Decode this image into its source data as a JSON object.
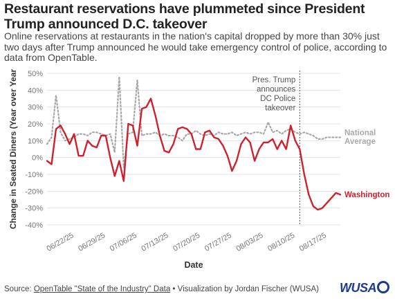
{
  "header": {
    "title": "Restaurant reservations have plummeted since President Trump announced D.C. takeover",
    "subtitle": "Online reservations at restaurants in the nation's capital dropped by more than 30% just two days after Trump announced he would take emergency control of police, according to data from OpenTable."
  },
  "footer": {
    "source_prefix": "Source: ",
    "source_link": "OpenTable \"State of the Industry\" Data",
    "credit": " • Visualization by Jordan Fischer (WUSA)",
    "logo_text": "WUSA"
  },
  "colors": {
    "washington": "#d0202e",
    "national": "#a8a8a8",
    "grid": "#e3e3e3",
    "axis_text": "#777777"
  },
  "chart_data": {
    "type": "line",
    "title": "",
    "xlabel": "Date",
    "ylabel": "Change in Seated Diners (Year over Year",
    "ylim": [
      -0.4,
      0.5
    ],
    "y_ticks": [
      "-40%",
      "-30%",
      "-20%",
      "-10%",
      "0%",
      "10%",
      "20%",
      "30%",
      "40%",
      "50%"
    ],
    "x_tick_labels": [
      "06/22/25",
      "06/29/25",
      "07/06/25",
      "07/13/25",
      "07/20/25",
      "07/27/25",
      "08/03/25",
      "08/10/25",
      "08/17/25"
    ],
    "x_start": "06/16/25",
    "x_end": "08/20/25",
    "grid": "horizontal",
    "annotation": {
      "date": "08/11/25",
      "lines": [
        "Pres. Trump",
        "announces",
        "DC Police",
        "takeover"
      ]
    },
    "series": [
      {
        "name": "Washington",
        "label_lines": [
          "Washington"
        ],
        "style": "solid",
        "dates": [
          "06/16/25",
          "06/17/25",
          "06/18/25",
          "06/19/25",
          "06/20/25",
          "06/21/25",
          "06/22/25",
          "06/23/25",
          "06/24/25",
          "06/25/25",
          "06/26/25",
          "06/27/25",
          "06/28/25",
          "06/29/25",
          "06/30/25",
          "07/01/25",
          "07/02/25",
          "07/03/25",
          "07/04/25",
          "07/05/25",
          "07/06/25",
          "07/07/25",
          "07/08/25",
          "07/09/25",
          "07/10/25",
          "07/11/25",
          "07/12/25",
          "07/13/25",
          "07/14/25",
          "07/15/25",
          "07/16/25",
          "07/17/25",
          "07/18/25",
          "07/19/25",
          "07/20/25",
          "07/21/25",
          "07/22/25",
          "07/23/25",
          "07/24/25",
          "07/25/25",
          "07/26/25",
          "07/27/25",
          "07/28/25",
          "07/29/25",
          "07/30/25",
          "07/31/25",
          "08/01/25",
          "08/02/25",
          "08/03/25",
          "08/04/25",
          "08/05/25",
          "08/06/25",
          "08/07/25",
          "08/08/25",
          "08/09/25",
          "08/10/25",
          "08/11/25",
          "08/12/25",
          "08/13/25",
          "08/14/25",
          "08/15/25",
          "08/16/25",
          "08/17/25",
          "08/18/25",
          "08/19/25",
          "08/20/25"
        ],
        "values": [
          -0.02,
          -0.04,
          0.17,
          0.19,
          0.14,
          0.08,
          0.14,
          0.01,
          0.01,
          0.1,
          0.07,
          0.06,
          0.13,
          0.13,
          0.0,
          -0.11,
          -0.02,
          -0.14,
          0.2,
          0.19,
          0.07,
          0.29,
          0.3,
          0.35,
          0.25,
          0.13,
          0.04,
          0.03,
          0.08,
          0.17,
          0.18,
          0.17,
          0.14,
          0.05,
          0.05,
          0.15,
          0.16,
          0.12,
          0.11,
          0.07,
          0.01,
          -0.08,
          -0.02,
          0.08,
          0.12,
          0.09,
          -0.02,
          0.05,
          0.09,
          0.09,
          0.11,
          0.05,
          0.1,
          0.05,
          0.19,
          0.1,
          0.05,
          -0.1,
          -0.22,
          -0.29,
          -0.31,
          -0.3,
          -0.27,
          -0.24,
          -0.21,
          -0.22
        ]
      },
      {
        "name": "National Average",
        "label_lines": [
          "National",
          "Average"
        ],
        "style": "dotted",
        "dates": [
          "06/16/25",
          "06/17/25",
          "06/18/25",
          "06/19/25",
          "06/20/25",
          "06/21/25",
          "06/22/25",
          "06/23/25",
          "06/24/25",
          "06/25/25",
          "06/26/25",
          "06/27/25",
          "06/28/25",
          "06/29/25",
          "06/30/25",
          "07/01/25",
          "07/02/25",
          "07/03/25",
          "07/04/25",
          "07/05/25",
          "07/06/25",
          "07/07/25",
          "07/08/25",
          "07/09/25",
          "07/10/25",
          "07/11/25",
          "07/12/25",
          "07/13/25",
          "07/14/25",
          "07/15/25",
          "07/16/25",
          "07/17/25",
          "07/18/25",
          "07/19/25",
          "07/20/25",
          "07/21/25",
          "07/22/25",
          "07/23/25",
          "07/24/25",
          "07/25/25",
          "07/26/25",
          "07/27/25",
          "07/28/25",
          "07/29/25",
          "07/30/25",
          "07/31/25",
          "08/01/25",
          "08/02/25",
          "08/03/25",
          "08/04/25",
          "08/05/25",
          "08/06/25",
          "08/07/25",
          "08/08/25",
          "08/09/25",
          "08/10/25",
          "08/11/25",
          "08/12/25",
          "08/13/25",
          "08/14/25",
          "08/15/25",
          "08/16/25",
          "08/17/25",
          "08/18/25",
          "08/19/25",
          "08/20/25"
        ],
        "values": [
          0.08,
          0.12,
          0.37,
          0.15,
          0.1,
          0.11,
          0.12,
          0.14,
          0.14,
          0.13,
          0.15,
          0.15,
          0.14,
          0.13,
          0.14,
          0.03,
          0.48,
          -0.06,
          0.14,
          0.15,
          0.46,
          0.13,
          0.14,
          0.14,
          0.15,
          0.13,
          0.14,
          0.13,
          0.13,
          0.12,
          0.1,
          0.14,
          0.14,
          0.16,
          0.14,
          0.13,
          0.14,
          0.13,
          0.15,
          0.14,
          0.14,
          0.15,
          0.13,
          0.14,
          0.15,
          0.14,
          0.15,
          0.15,
          0.14,
          0.21,
          0.15,
          0.16,
          0.14,
          0.16,
          0.17,
          0.15,
          0.14,
          0.15,
          0.14,
          0.13,
          0.11,
          0.11,
          0.12,
          0.12,
          0.12,
          0.12
        ]
      }
    ]
  }
}
